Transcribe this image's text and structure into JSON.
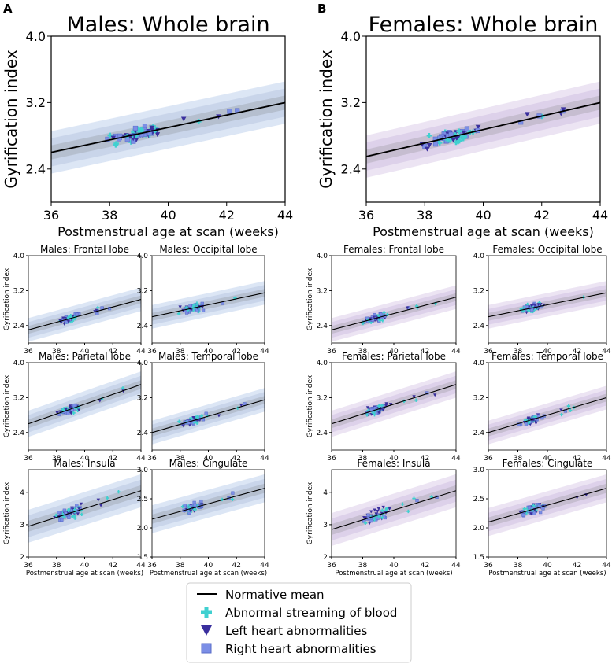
{
  "panel_labels": [
    "A",
    "B"
  ],
  "legend": {
    "items": [
      {
        "key": "mean",
        "label": "Normative mean",
        "marker": "line",
        "color": "#000000"
      },
      {
        "key": "abn",
        "label": "Abnormal streaming of blood",
        "marker": "plus",
        "color": "#40d0d0"
      },
      {
        "key": "left",
        "label": "Left heart abnormalities",
        "marker": "triangle-down",
        "color": "#3a2f9e"
      },
      {
        "key": "right",
        "label": "Right heart abnormalities",
        "marker": "square",
        "color": "#7b8ee6"
      }
    ]
  },
  "colors": {
    "male_band_outer": "#dce6f5",
    "male_band_mid": "#c9d5ea",
    "male_band_inner": "#b5bfcf",
    "female_band_outer": "#ece4f3",
    "female_band_mid": "#ddd1ea",
    "female_band_inner": "#c6bdd0",
    "mean_line": "#000000",
    "abnormal_streaming": "#40d0d0",
    "left_heart": "#3a2f9e",
    "right_heart": "#7b8ee6"
  },
  "chart_data": [
    {
      "id": "m-whole",
      "type": "scatter",
      "sex": "male",
      "size": "large",
      "title": "Males: Whole brain",
      "xlabel": "Postmenstrual age at scan (weeks)",
      "ylabel": "Gyrification index",
      "xlim": [
        36,
        44
      ],
      "ylim": [
        2.0,
        4.0
      ],
      "xticks": [
        36,
        38,
        40,
        42,
        44
      ],
      "yticks": [
        "2.4",
        "3.2",
        "4.0"
      ],
      "ytick_values": [
        2.4,
        3.2,
        4.0
      ],
      "mean_line": [
        [
          36,
          2.6
        ],
        [
          44,
          3.2
        ]
      ],
      "band_sd": 0.085,
      "scatter_spread": 0.08
    },
    {
      "id": "f-whole",
      "type": "scatter",
      "sex": "female",
      "size": "large",
      "title": "Females: Whole brain",
      "xlabel": "Postmenstrual age at scan (weeks)",
      "ylabel": "Gyrification index",
      "xlim": [
        36,
        44
      ],
      "ylim": [
        2.0,
        4.0
      ],
      "xticks": [
        36,
        38,
        40,
        42,
        44
      ],
      "yticks": [
        "2.4",
        "3.2",
        "4.0"
      ],
      "ytick_values": [
        2.4,
        3.2,
        4.0
      ],
      "mean_line": [
        [
          36,
          2.55
        ],
        [
          44,
          3.2
        ]
      ],
      "band_sd": 0.085,
      "scatter_spread": 0.08
    },
    {
      "id": "m-frontal",
      "type": "scatter",
      "sex": "male",
      "size": "small",
      "title": "Males: Frontal lobe",
      "xlabel": "",
      "ylabel": "Gyrification index",
      "xlim": [
        36,
        44
      ],
      "ylim": [
        2.0,
        4.0
      ],
      "xticks": [
        36,
        38,
        40,
        42,
        44
      ],
      "yticks": [
        "2.4",
        "3.2",
        "4.0"
      ],
      "ytick_values": [
        2.4,
        3.2,
        4.0
      ],
      "mean_line": [
        [
          36,
          2.3
        ],
        [
          44,
          3.0
        ]
      ],
      "band_sd": 0.09,
      "scatter_spread": 0.09
    },
    {
      "id": "m-occipital",
      "type": "scatter",
      "sex": "male",
      "size": "small",
      "title": "Males: Occipital lobe",
      "xlabel": "",
      "ylabel": "",
      "xlim": [
        36,
        44
      ],
      "ylim": [
        2.0,
        4.0
      ],
      "xticks": [
        36,
        38,
        40,
        42,
        44
      ],
      "yticks": [
        "2.4",
        "3.2",
        "4.0"
      ],
      "ytick_values": [
        2.4,
        3.2,
        4.0
      ],
      "mean_line": [
        [
          36,
          2.6
        ],
        [
          44,
          3.15
        ]
      ],
      "band_sd": 0.09,
      "scatter_spread": 0.1
    },
    {
      "id": "f-frontal",
      "type": "scatter",
      "sex": "female",
      "size": "small",
      "title": "Females: Frontal lobe",
      "xlabel": "",
      "ylabel": "Gyrification index",
      "xlim": [
        36,
        44
      ],
      "ylim": [
        2.0,
        4.0
      ],
      "xticks": [
        36,
        38,
        40,
        42,
        44
      ],
      "yticks": [
        "2.4",
        "3.2",
        "4.0"
      ],
      "ytick_values": [
        2.4,
        3.2,
        4.0
      ],
      "mean_line": [
        [
          36,
          2.3
        ],
        [
          44,
          3.05
        ]
      ],
      "band_sd": 0.09,
      "scatter_spread": 0.09
    },
    {
      "id": "f-occipital",
      "type": "scatter",
      "sex": "female",
      "size": "small",
      "title": "Females: Occipital lobe",
      "xlabel": "",
      "ylabel": "",
      "xlim": [
        36,
        44
      ],
      "ylim": [
        2.0,
        4.0
      ],
      "xticks": [
        36,
        38,
        40,
        42,
        44
      ],
      "yticks": [
        "2.4",
        "3.2",
        "4.0"
      ],
      "ytick_values": [
        2.4,
        3.2,
        4.0
      ],
      "mean_line": [
        [
          36,
          2.6
        ],
        [
          44,
          3.15
        ]
      ],
      "band_sd": 0.09,
      "scatter_spread": 0.1
    },
    {
      "id": "m-parietal",
      "type": "scatter",
      "sex": "male",
      "size": "small",
      "title": "Males: Parietal lobe",
      "xlabel": "",
      "ylabel": "Gyrification index",
      "xlim": [
        36,
        44
      ],
      "ylim": [
        2.0,
        4.0
      ],
      "xticks": [
        36,
        38,
        40,
        42,
        44
      ],
      "yticks": [
        "2.4",
        "3.2",
        "4.0"
      ],
      "ytick_values": [
        2.4,
        3.2,
        4.0
      ],
      "mean_line": [
        [
          36,
          2.6
        ],
        [
          44,
          3.5
        ]
      ],
      "band_sd": 0.1,
      "scatter_spread": 0.1
    },
    {
      "id": "m-temporal",
      "type": "scatter",
      "sex": "male",
      "size": "small",
      "title": "Males: Temporal lobe",
      "xlabel": "",
      "ylabel": "",
      "xlim": [
        36,
        44
      ],
      "ylim": [
        2.0,
        4.0
      ],
      "xticks": [
        36,
        38,
        40,
        42,
        44
      ],
      "yticks": [
        "2.4",
        "3.2",
        "4.0"
      ],
      "ytick_values": [
        2.4,
        3.2,
        4.0
      ],
      "mean_line": [
        [
          36,
          2.4
        ],
        [
          44,
          3.15
        ]
      ],
      "band_sd": 0.09,
      "scatter_spread": 0.09
    },
    {
      "id": "f-parietal",
      "type": "scatter",
      "sex": "female",
      "size": "small",
      "title": "Females: Parietal lobe",
      "xlabel": "",
      "ylabel": "Gyrification index",
      "xlim": [
        36,
        44
      ],
      "ylim": [
        2.0,
        4.0
      ],
      "xticks": [
        36,
        38,
        40,
        42,
        44
      ],
      "yticks": [
        "2.4",
        "3.2",
        "4.0"
      ],
      "ytick_values": [
        2.4,
        3.2,
        4.0
      ],
      "mean_line": [
        [
          36,
          2.6
        ],
        [
          44,
          3.5
        ]
      ],
      "band_sd": 0.1,
      "scatter_spread": 0.1
    },
    {
      "id": "f-temporal",
      "type": "scatter",
      "sex": "female",
      "size": "small",
      "title": "Females: Temporal lobe",
      "xlabel": "",
      "ylabel": "",
      "xlim": [
        36,
        44
      ],
      "ylim": [
        2.0,
        4.0
      ],
      "xticks": [
        36,
        38,
        40,
        42,
        44
      ],
      "yticks": [
        "2.4",
        "3.2",
        "4.0"
      ],
      "ytick_values": [
        2.4,
        3.2,
        4.0
      ],
      "mean_line": [
        [
          36,
          2.4
        ],
        [
          44,
          3.2
        ]
      ],
      "band_sd": 0.09,
      "scatter_spread": 0.09
    },
    {
      "id": "m-insula",
      "type": "scatter",
      "sex": "male",
      "size": "small",
      "title": "Males: Insula",
      "xlabel": "Postmenstrual age at scan (weeks)",
      "ylabel": "Gyrification index",
      "xlim": [
        36,
        44
      ],
      "ylim": [
        2.0,
        4.7
      ],
      "xticks": [
        36,
        38,
        40,
        42,
        44
      ],
      "yticks": [
        "2",
        "3",
        "4"
      ],
      "ytick_values": [
        2,
        3,
        4
      ],
      "mean_line": [
        [
          36,
          2.95
        ],
        [
          44,
          4.05
        ]
      ],
      "band_sd": 0.17,
      "scatter_spread": 0.2
    },
    {
      "id": "m-cingulate",
      "type": "scatter",
      "sex": "male",
      "size": "small",
      "title": "Males: Cingulate",
      "xlabel": "Postmenstrual age at scan (weeks)",
      "ylabel": "",
      "xlim": [
        36,
        44
      ],
      "ylim": [
        1.5,
        3.0
      ],
      "xticks": [
        36,
        38,
        40,
        42,
        44
      ],
      "yticks": [
        "1.5",
        "2.0",
        "2.5",
        "3.0"
      ],
      "ytick_values": [
        1.5,
        2.0,
        2.5,
        3.0
      ],
      "mean_line": [
        [
          36,
          2.15
        ],
        [
          44,
          2.68
        ]
      ],
      "band_sd": 0.08,
      "scatter_spread": 0.08
    },
    {
      "id": "f-insula",
      "type": "scatter",
      "sex": "female",
      "size": "small",
      "title": "Females: Insula",
      "xlabel": "Postmenstrual age at scan (weeks)",
      "ylabel": "Gyrification index",
      "xlim": [
        36,
        44
      ],
      "ylim": [
        2.0,
        4.7
      ],
      "xticks": [
        36,
        38,
        40,
        42,
        44
      ],
      "yticks": [
        "2",
        "3",
        "4"
      ],
      "ytick_values": [
        2,
        3,
        4
      ],
      "mean_line": [
        [
          36,
          2.85
        ],
        [
          44,
          4.05
        ]
      ],
      "band_sd": 0.17,
      "scatter_spread": 0.2
    },
    {
      "id": "f-cingulate",
      "type": "scatter",
      "sex": "female",
      "size": "small",
      "title": "Females: Cingulate",
      "xlabel": "Postmenstrual age at scan (weeks)",
      "ylabel": "",
      "xlim": [
        36,
        44
      ],
      "ylim": [
        1.5,
        3.0
      ],
      "xticks": [
        36,
        38,
        40,
        42,
        44
      ],
      "yticks": [
        "1.5",
        "2.0",
        "2.5",
        "3.0"
      ],
      "ytick_values": [
        1.5,
        2.0,
        2.5,
        3.0
      ],
      "mean_line": [
        [
          36,
          2.1
        ],
        [
          44,
          2.68
        ]
      ],
      "band_sd": 0.08,
      "scatter_spread": 0.08
    }
  ]
}
